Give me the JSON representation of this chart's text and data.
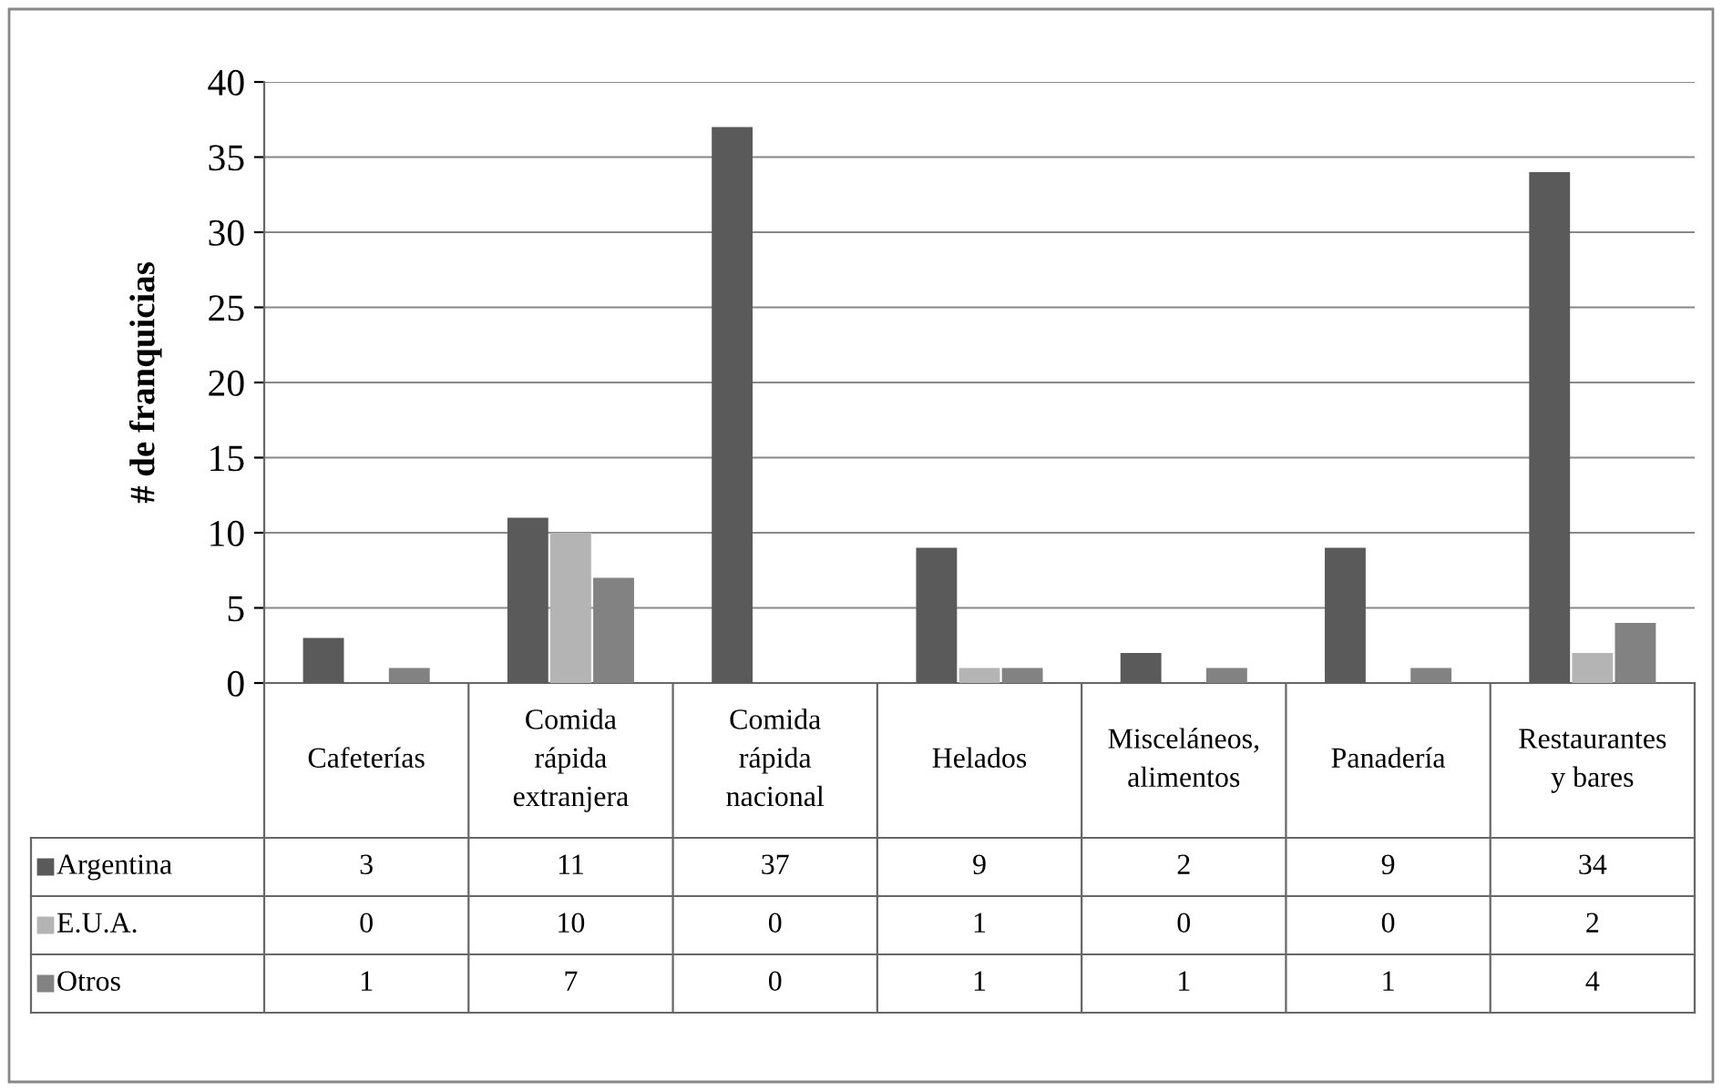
{
  "chart_data": {
    "type": "bar",
    "ylabel": "# de franquicias",
    "categories": [
      "Cafeterías",
      "Comida\nrápida\nextranjera",
      "Comida\nrápida\nnacional",
      "Helados",
      "Misceláneos,\nalimentos",
      "Panadería",
      "Restaurantes\ny bares"
    ],
    "series": [
      {
        "name": "Argentina",
        "color": "#5a5a5a",
        "values": [
          3,
          11,
          37,
          9,
          2,
          9,
          34
        ]
      },
      {
        "name": "E.U.A.",
        "color": "#b4b4b4",
        "values": [
          0,
          10,
          0,
          1,
          0,
          0,
          2
        ]
      },
      {
        "name": "Otros",
        "color": "#828282",
        "values": [
          1,
          7,
          0,
          1,
          1,
          1,
          4
        ]
      }
    ],
    "ylim": [
      0,
      40
    ],
    "yticks": [
      0,
      5,
      10,
      15,
      20,
      25,
      30,
      35,
      40
    ],
    "grid": "y",
    "legend": "bottom",
    "data_labels": true
  }
}
